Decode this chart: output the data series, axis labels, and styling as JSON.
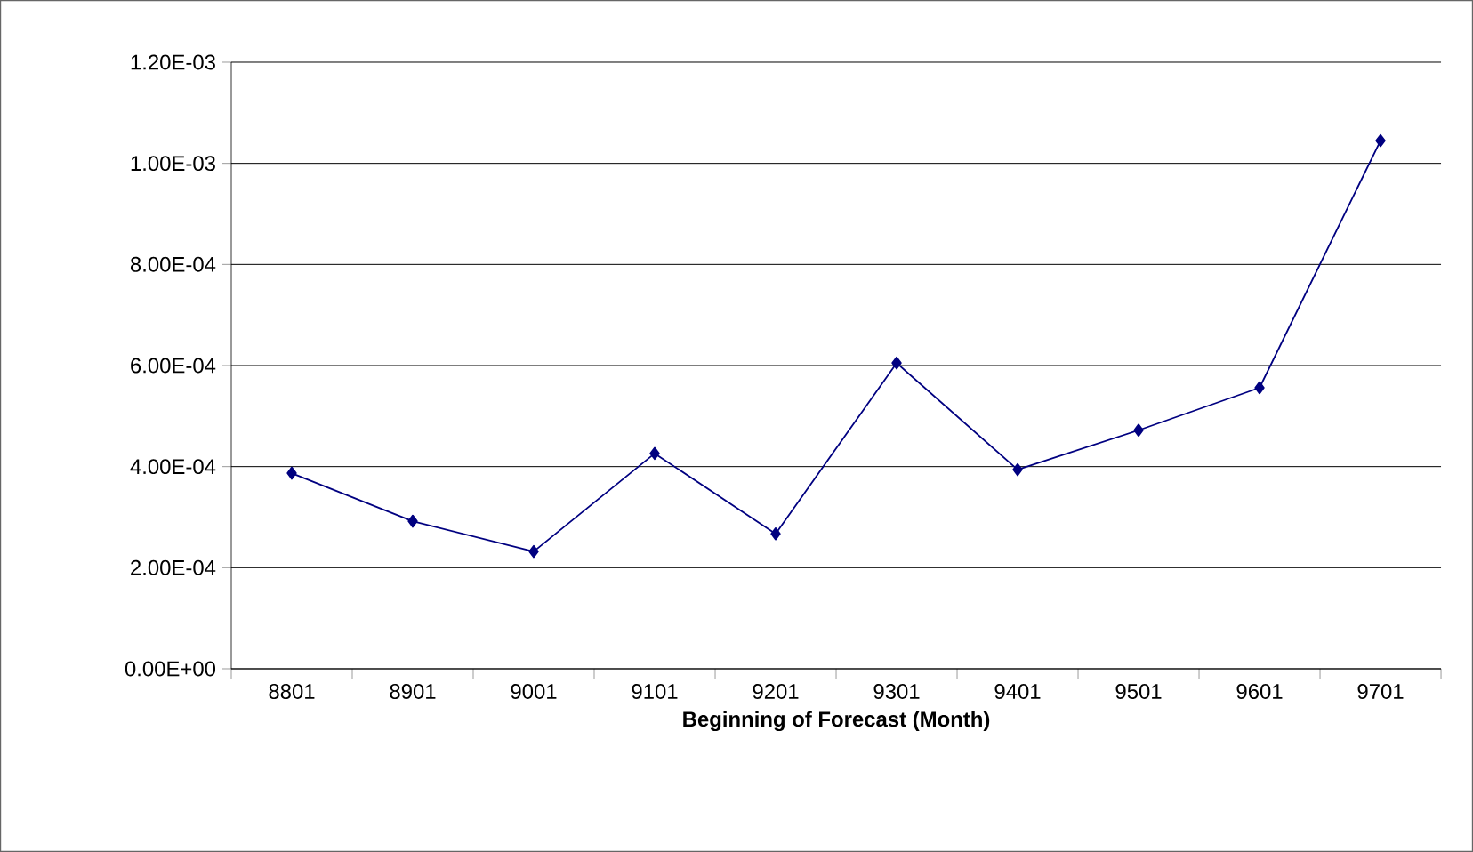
{
  "chart_data": {
    "type": "line",
    "xlabel": "Beginning of Forecast (Month)",
    "categories": [
      "8801",
      "8901",
      "9001",
      "9101",
      "9201",
      "9301",
      "9401",
      "9501",
      "9601",
      "9701"
    ],
    "series": [
      {
        "color": "#000080",
        "values": [
          0.000387,
          0.000292,
          0.000232,
          0.000426,
          0.000267,
          0.000605,
          0.000394,
          0.000472,
          0.000556,
          0.001045
        ]
      }
    ],
    "ylim": [
      0,
      0.0012
    ],
    "yticks": [
      {
        "value": 0,
        "label": "0.00E+00"
      },
      {
        "value": 0.0002,
        "label": "2.00E-04"
      },
      {
        "value": 0.0004,
        "label": "4.00E-04"
      },
      {
        "value": 0.0006,
        "label": "6.00E-04"
      },
      {
        "value": 0.0008,
        "label": "8.00E-04"
      },
      {
        "value": 0.001,
        "label": "1.00E-03"
      },
      {
        "value": 0.0012,
        "label": "1.20E-03"
      }
    ],
    "grid": "y",
    "marker": "diamond",
    "line_style": "solid"
  }
}
